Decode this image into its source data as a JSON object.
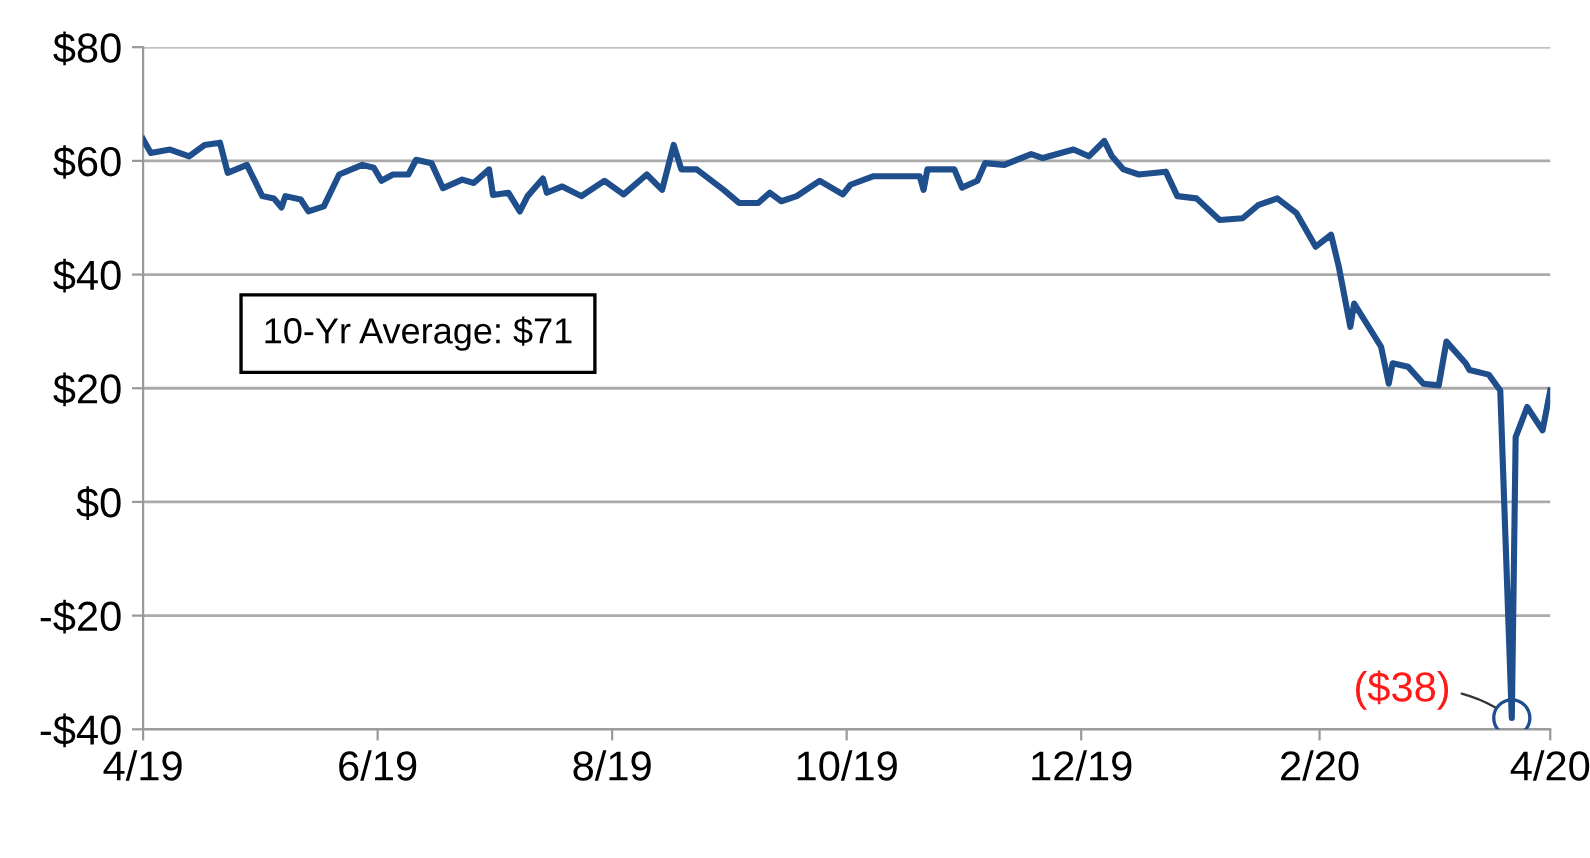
{
  "chart_data": {
    "type": "line",
    "x": [
      "2019-04-01",
      "2019-04-03",
      "2019-04-08",
      "2019-04-13",
      "2019-04-17",
      "2019-04-21",
      "2019-04-23",
      "2019-04-28",
      "2019-05-02",
      "2019-05-05",
      "2019-05-07",
      "2019-05-08",
      "2019-05-12",
      "2019-05-14",
      "2019-05-18",
      "2019-05-22",
      "2019-05-28",
      "2019-05-31",
      "2019-06-02",
      "2019-06-05",
      "2019-06-09",
      "2019-06-11",
      "2019-06-15",
      "2019-06-18",
      "2019-06-23",
      "2019-06-26",
      "2019-06-30",
      "2019-07-01",
      "2019-07-05",
      "2019-07-08",
      "2019-07-10",
      "2019-07-14",
      "2019-07-15",
      "2019-07-19",
      "2019-07-24",
      "2019-07-30",
      "2019-08-04",
      "2019-08-10",
      "2019-08-14",
      "2019-08-17",
      "2019-08-19",
      "2019-08-23",
      "2019-08-30",
      "2019-09-03",
      "2019-09-08",
      "2019-09-11",
      "2019-09-14",
      "2019-09-18",
      "2019-09-24",
      "2019-09-30",
      "2019-10-02",
      "2019-10-08",
      "2019-10-20",
      "2019-10-21",
      "2019-10-22",
      "2019-10-29",
      "2019-10-31",
      "2019-11-04",
      "2019-11-06",
      "2019-11-11",
      "2019-11-18",
      "2019-11-21",
      "2019-11-29",
      "2019-12-03",
      "2019-12-07",
      "2019-12-09",
      "2019-12-12",
      "2019-12-16",
      "2019-12-23",
      "2019-12-26",
      "2019-12-31",
      "2020-01-06",
      "2020-01-12",
      "2020-01-16",
      "2020-01-21",
      "2020-01-26",
      "2020-01-31",
      "2020-02-04",
      "2020-02-06",
      "2020-02-09",
      "2020-02-10",
      "2020-02-17",
      "2020-02-19",
      "2020-02-20",
      "2020-02-24",
      "2020-02-28",
      "2020-03-03",
      "2020-03-05",
      "2020-03-10",
      "2020-03-11",
      "2020-03-16",
      "2020-03-19",
      "2020-03-22",
      "2020-03-23",
      "2020-03-26",
      "2020-03-30",
      "2020-04-01"
    ],
    "series": [
      {
        "color": "#1f4e8c",
        "values": [
          63.8,
          61.4,
          62,
          60.8,
          62.8,
          63.2,
          57.9,
          59.3,
          53.8,
          53.4,
          51.8,
          53.8,
          53.2,
          51.1,
          52,
          57.6,
          59.3,
          58.8,
          56.5,
          57.6,
          57.6,
          60.2,
          59.6,
          55.2,
          56.7,
          56.1,
          58.5,
          54,
          54.4,
          51.1,
          53.8,
          56.9,
          54.4,
          55.5,
          53.8,
          56.5,
          54.1,
          57.6,
          54.9,
          62.8,
          58.5,
          58.5,
          54.9,
          52.6,
          52.6,
          54.4,
          52.9,
          53.8,
          56.5,
          54.1,
          55.8,
          57.3,
          57.3,
          54.9,
          58.5,
          58.5,
          55.3,
          56.5,
          59.6,
          59.3,
          61.2,
          60.5,
          62,
          60.8,
          63.5,
          60.8,
          58.5,
          57.6,
          58.1,
          53.8,
          53.4,
          49.6,
          49.9,
          52.2,
          53.4,
          50.8,
          44.9,
          47,
          41.4,
          30.8,
          34.9,
          27.3,
          20.8,
          24.4,
          23.8,
          20.8,
          20.5,
          28.2,
          24.4,
          23.2,
          22.4,
          19.6,
          -38,
          11.4,
          16.7,
          12.6,
          19.6
        ]
      }
    ],
    "xlim": [
      "2019-04-01",
      "2020-04-01"
    ],
    "xticks": [
      {
        "value": "2019-04-01",
        "label": "4/19"
      },
      {
        "value": "2019-06-01",
        "label": "6/19"
      },
      {
        "value": "2019-08-01",
        "label": "8/19"
      },
      {
        "value": "2019-10-01",
        "label": "10/19"
      },
      {
        "value": "2019-12-01",
        "label": "12/19"
      },
      {
        "value": "2020-02-01",
        "label": "2/20"
      },
      {
        "value": "2020-04-01",
        "label": "4/20"
      }
    ],
    "ylim": [
      -40,
      80
    ],
    "yticks": [
      {
        "value": -40,
        "label": "-$40"
      },
      {
        "value": -20,
        "label": "-$20"
      },
      {
        "value": 0,
        "label": "$0"
      },
      {
        "value": 20,
        "label": "$20"
      },
      {
        "value": 40,
        "label": "$40"
      },
      {
        "value": 60,
        "label": "$60"
      },
      {
        "value": 80,
        "label": "$80"
      }
    ],
    "grid": "y",
    "line_style": "solid",
    "marker": "none",
    "annotations": [
      "10-Yr Average: $71",
      {
        "text": "($38)",
        "x": "2020-03-22",
        "y": -38
      }
    ]
  }
}
